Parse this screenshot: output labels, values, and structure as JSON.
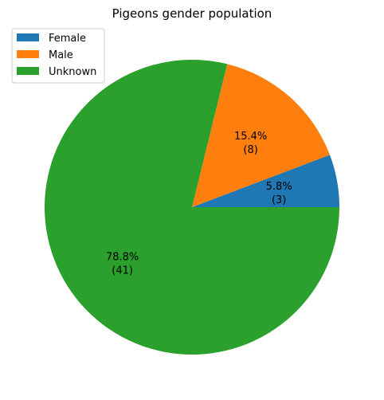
{
  "chart_data": {
    "type": "pie",
    "title": "Pigeons gender population",
    "slices": [
      {
        "label": "Female",
        "value": 3,
        "pct_label": "5.8%",
        "count_label": "(3)",
        "color": "#1f77b4"
      },
      {
        "label": "Male",
        "value": 8,
        "pct_label": "15.4%",
        "count_label": "(8)",
        "color": "#ff7f0e"
      },
      {
        "label": "Unknown",
        "value": 41,
        "pct_label": "78.8%",
        "count_label": "(41)",
        "color": "#2ca02c"
      }
    ],
    "legend_position": "top-left",
    "start_angle_deg": 0,
    "direction": "counterclockwise"
  }
}
